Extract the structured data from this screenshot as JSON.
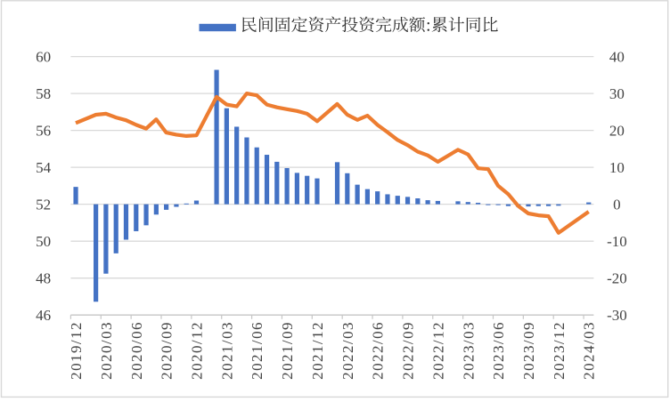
{
  "chart_data": {
    "type": "bar+line",
    "legend": {
      "position": "top",
      "items": [
        {
          "label": "民间固定资产投资完成额:累计同比",
          "swatch_color": "#4472C4",
          "series_type": "bar"
        }
      ]
    },
    "categories": [
      "2019/12",
      "2020/01",
      "2020/02",
      "2020/03",
      "2020/04",
      "2020/05",
      "2020/06",
      "2020/07",
      "2020/08",
      "2020/09",
      "2020/10",
      "2020/11",
      "2020/12",
      "2021/01",
      "2021/02",
      "2021/03",
      "2021/04",
      "2021/05",
      "2021/06",
      "2021/07",
      "2021/08",
      "2021/09",
      "2021/10",
      "2021/11",
      "2021/12",
      "2022/01",
      "2022/02",
      "2022/03",
      "2022/04",
      "2022/05",
      "2022/06",
      "2022/07",
      "2022/08",
      "2022/09",
      "2022/10",
      "2022/11",
      "2022/12",
      "2023/01",
      "2023/02",
      "2023/03",
      "2023/04",
      "2023/05",
      "2023/06",
      "2023/07",
      "2023/08",
      "2023/09",
      "2023/10",
      "2023/11",
      "2023/12",
      "2024/01",
      "2024/02",
      "2024/03"
    ],
    "x_axis": {
      "label_every": 3
    },
    "left_axis": {
      "min": 46,
      "max": 60,
      "ticks": [
        46,
        48,
        50,
        52,
        54,
        56,
        58,
        60
      ]
    },
    "right_axis": {
      "min": -30,
      "max": 40,
      "ticks": [
        -30,
        -20,
        -10,
        0,
        10,
        20,
        30,
        40
      ]
    },
    "series": [
      {
        "type": "bar",
        "axis": "right",
        "name": "民间固定资产投资完成额:累计同比",
        "color": "#4472C4",
        "values": [
          4.7,
          null,
          -26.4,
          -18.8,
          -13.3,
          -9.6,
          -7.3,
          -5.7,
          -2.8,
          -1.5,
          -0.7,
          0.2,
          1.0,
          null,
          36.4,
          26.0,
          21.0,
          18.1,
          15.4,
          13.4,
          11.5,
          9.8,
          8.5,
          7.7,
          7.0,
          null,
          11.4,
          8.4,
          5.3,
          4.1,
          3.5,
          2.7,
          2.3,
          2.0,
          1.6,
          1.1,
          0.9,
          null,
          0.8,
          0.6,
          0.4,
          -0.1,
          -0.2,
          -0.5,
          -0.7,
          -0.6,
          -0.5,
          -0.5,
          -0.4,
          null,
          null,
          0.5
        ]
      },
      {
        "type": "line",
        "axis": "left",
        "color": "#ED7D31",
        "values": [
          56.4,
          null,
          56.85,
          56.9,
          56.7,
          56.55,
          56.3,
          56.1,
          56.6,
          55.88,
          55.77,
          55.7,
          55.73,
          null,
          57.82,
          57.4,
          57.3,
          58.0,
          57.9,
          57.4,
          57.25,
          57.15,
          57.05,
          56.9,
          56.5,
          null,
          57.43,
          56.85,
          56.57,
          56.8,
          56.3,
          55.9,
          55.48,
          55.2,
          54.85,
          54.65,
          54.3,
          null,
          54.95,
          54.7,
          53.95,
          53.9,
          53.0,
          52.55,
          51.9,
          51.5,
          51.4,
          51.35,
          50.45,
          null,
          null,
          51.6
        ]
      }
    ],
    "grid": true
  },
  "colors": {
    "bar_blue": "#4472C4",
    "line_orange": "#ED7D31",
    "gridline": "#D9D9D9",
    "axis_line": "#C6C6C6",
    "axis_text": "#444444",
    "legend_text": "#303030",
    "frame_border": "#D8D8D8",
    "background": "#FFFFFF"
  }
}
